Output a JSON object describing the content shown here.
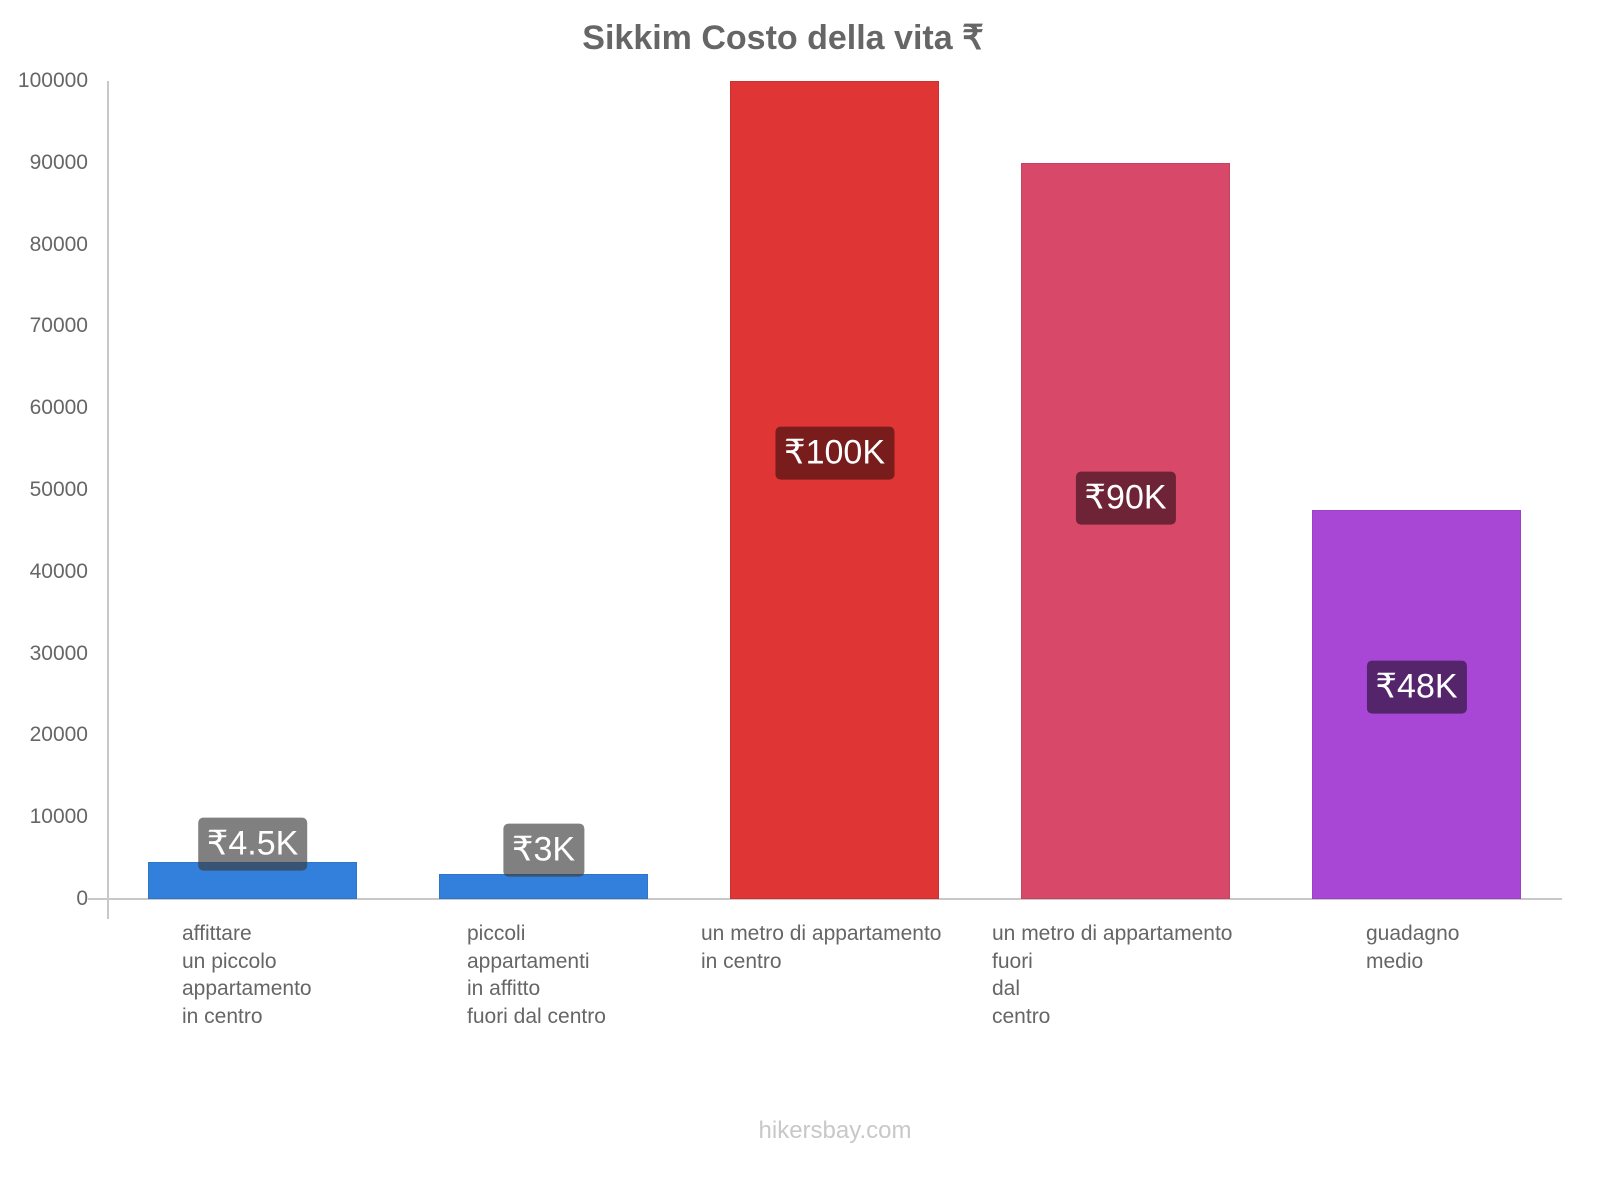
{
  "chart_data": {
    "type": "bar",
    "title": "Sikkim Costo della vita ₹",
    "xlabel": "",
    "ylabel": "",
    "ylim": [
      0,
      100000
    ],
    "yticks": [
      0,
      10000,
      20000,
      30000,
      40000,
      50000,
      60000,
      70000,
      80000,
      90000,
      100000
    ],
    "grid": false,
    "legend": null,
    "categories": [
      "affittare un piccolo appartamento in centro",
      "piccoli appartamenti in affitto fuori dal centro",
      "un metro di appartamento in centro",
      "un metro di appartamento fuori dal centro",
      "guadagno medio"
    ],
    "values": [
      4500,
      3000,
      100000,
      90000,
      47500
    ],
    "data_labels": [
      "₹4.5K",
      "₹3K",
      "₹100K",
      "₹90K",
      "₹48K"
    ],
    "colors": [
      "#3380dc",
      "#3380dc",
      "#e03535",
      "#d84868",
      "#a847d6"
    ]
  },
  "title": "Sikkim Costo della vita ₹",
  "y_ticks": [
    "0",
    "10000",
    "20000",
    "30000",
    "40000",
    "50000",
    "60000",
    "70000",
    "80000",
    "90000",
    "100000"
  ],
  "bars": [
    {
      "label": "affittare\nun piccolo\nappartamento\nin centro",
      "value_label": "₹4.5K",
      "color": "#3380dc",
      "badge": "rgba(60,60,60,0.65)"
    },
    {
      "label": "piccoli\nappartamenti\nin affitto\nfuori dal centro",
      "value_label": "₹3K",
      "color": "#3380dc",
      "badge": "rgba(60,60,60,0.65)"
    },
    {
      "label": "un metro di appartamento\nin centro",
      "value_label": "₹100K",
      "color": "#e03535",
      "badge": "#781c1c"
    },
    {
      "label": "un metro di appartamento\nfuori\ndal\ncentro",
      "value_label": "₹90K",
      "color": "#d84868",
      "badge": "#6e2436"
    },
    {
      "label": "guadagno\nmedio",
      "value_label": "₹48K",
      "color": "#a847d6",
      "badge": "#55256c"
    }
  ],
  "footer": "hikersbay.com"
}
